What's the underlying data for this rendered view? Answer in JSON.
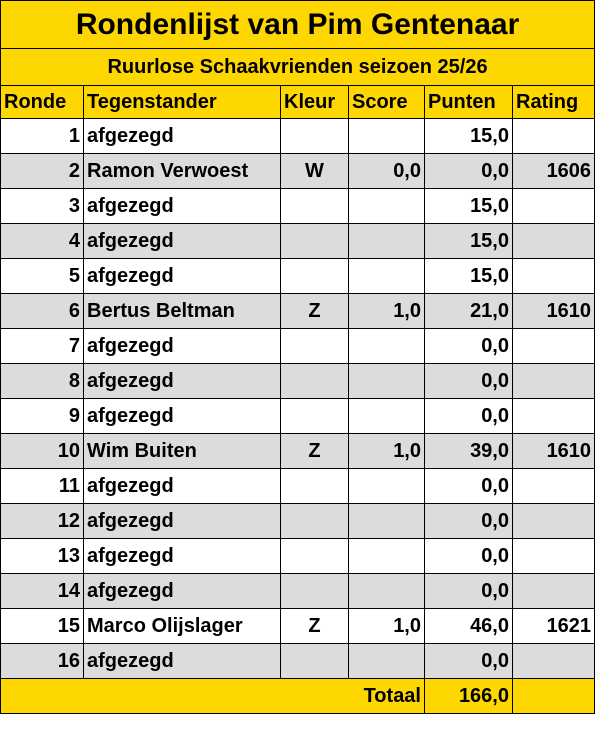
{
  "title": "Rondenlijst van Pim Gentenaar",
  "subtitle": "Ruurlose Schaakvrienden seizoen 25/26",
  "headers": [
    "Ronde",
    "Tegenstander",
    "Kleur",
    "Score",
    "Punten",
    "Rating"
  ],
  "rows": [
    {
      "ronde": "1",
      "tegenstander": "afgezegd",
      "kleur": "",
      "score": "",
      "punten": "15,0",
      "rating": ""
    },
    {
      "ronde": "2",
      "tegenstander": "Ramon Verwoest",
      "kleur": "W",
      "score": "0,0",
      "punten": "0,0",
      "rating": "1606"
    },
    {
      "ronde": "3",
      "tegenstander": "afgezegd",
      "kleur": "",
      "score": "",
      "punten": "15,0",
      "rating": ""
    },
    {
      "ronde": "4",
      "tegenstander": "afgezegd",
      "kleur": "",
      "score": "",
      "punten": "15,0",
      "rating": ""
    },
    {
      "ronde": "5",
      "tegenstander": "afgezegd",
      "kleur": "",
      "score": "",
      "punten": "15,0",
      "rating": ""
    },
    {
      "ronde": "6",
      "tegenstander": "Bertus Beltman",
      "kleur": "Z",
      "score": "1,0",
      "punten": "21,0",
      "rating": "1610"
    },
    {
      "ronde": "7",
      "tegenstander": "afgezegd",
      "kleur": "",
      "score": "",
      "punten": "0,0",
      "rating": ""
    },
    {
      "ronde": "8",
      "tegenstander": "afgezegd",
      "kleur": "",
      "score": "",
      "punten": "0,0",
      "rating": ""
    },
    {
      "ronde": "9",
      "tegenstander": "afgezegd",
      "kleur": "",
      "score": "",
      "punten": "0,0",
      "rating": ""
    },
    {
      "ronde": "10",
      "tegenstander": "Wim Buiten",
      "kleur": "Z",
      "score": "1,0",
      "punten": "39,0",
      "rating": "1610"
    },
    {
      "ronde": "11",
      "tegenstander": "afgezegd",
      "kleur": "",
      "score": "",
      "punten": "0,0",
      "rating": ""
    },
    {
      "ronde": "12",
      "tegenstander": "afgezegd",
      "kleur": "",
      "score": "",
      "punten": "0,0",
      "rating": ""
    },
    {
      "ronde": "13",
      "tegenstander": "afgezegd",
      "kleur": "",
      "score": "",
      "punten": "0,0",
      "rating": ""
    },
    {
      "ronde": "14",
      "tegenstander": "afgezegd",
      "kleur": "",
      "score": "",
      "punten": "0,0",
      "rating": ""
    },
    {
      "ronde": "15",
      "tegenstander": "Marco Olijslager",
      "kleur": "Z",
      "score": "1,0",
      "punten": "46,0",
      "rating": "1621"
    },
    {
      "ronde": "16",
      "tegenstander": "afgezegd",
      "kleur": "",
      "score": "",
      "punten": "0,0",
      "rating": ""
    }
  ],
  "total": {
    "label": "Totaal",
    "value": "166,0"
  },
  "colors": {
    "header_bg": "#ffd700",
    "alt_row_bg": "#dcdcdc",
    "row_bg": "#ffffff",
    "border": "#000000"
  }
}
